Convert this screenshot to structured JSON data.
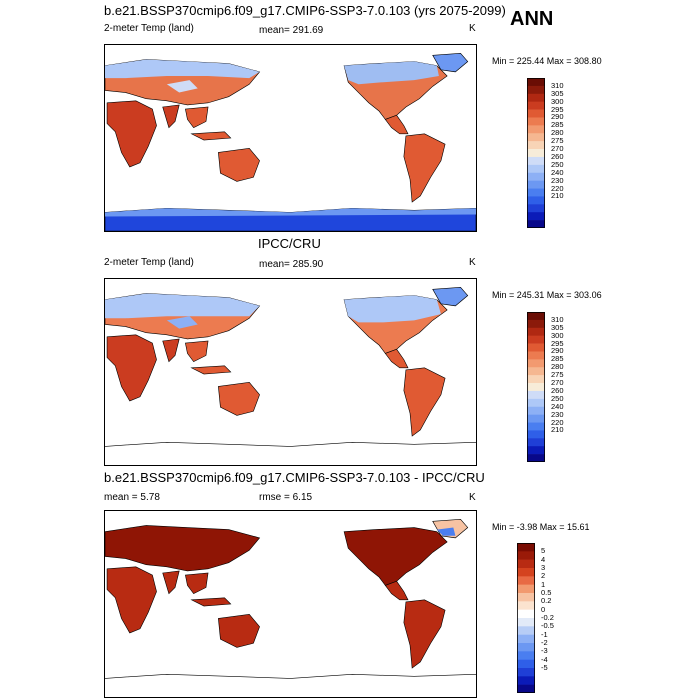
{
  "header": {
    "panel_label": "ANN"
  },
  "colors": {
    "abs_scale": [
      "#08088a",
      "#0b1bb8",
      "#1f3fd6",
      "#2f5fe8",
      "#4a7ef0",
      "#6c98f2",
      "#8db0f5",
      "#aec8f7",
      "#cfdcf7",
      "#f7ecd9",
      "#f8d4b6",
      "#f5b791",
      "#f29a70",
      "#ec7b50",
      "#e05a33",
      "#cb3c20",
      "#b02812",
      "#8b1a0a",
      "#6a0d04"
    ],
    "diff_scale": [
      "#08088a",
      "#0b1bb8",
      "#1f3fd6",
      "#2f5fe8",
      "#4a7ef0",
      "#6c98f2",
      "#8db0f5",
      "#b7cdf6",
      "#e2eaf8",
      "#ffffff",
      "#fbe3cf",
      "#f7c3a3",
      "#f29a70",
      "#e86a44",
      "#d4431f",
      "#b82b12",
      "#9a1a08",
      "#7a0c02"
    ],
    "land_top": "#e26a3e",
    "land_mid": "#e7744a",
    "land_diff": "#8f1505",
    "cold_top": "#9fbdf2",
    "antarctic": "#1f46dc"
  },
  "chart_data": [
    {
      "type": "map",
      "title": "b.e21.BSSP370cmip6.f09_g17.CMIP6-SSP3-7.0.103 (yrs 2075-2099)",
      "variable": "2-meter Temp (land)",
      "mean_text": "mean= 291.69",
      "units": "K",
      "minmax_text": "Min = 225.44 Max = 308.80",
      "levels": [
        "310",
        "305",
        "300",
        "295",
        "290",
        "285",
        "280",
        "275",
        "270",
        "260",
        "250",
        "240",
        "230",
        "220",
        "210"
      ]
    },
    {
      "type": "map",
      "title": "IPCC/CRU",
      "variable": "2-meter Temp (land)",
      "mean_text": "mean= 285.90",
      "units": "K",
      "minmax_text": "Min = 245.31 Max = 303.06",
      "levels": [
        "310",
        "305",
        "300",
        "295",
        "290",
        "285",
        "280",
        "275",
        "270",
        "260",
        "250",
        "240",
        "230",
        "220",
        "210"
      ]
    },
    {
      "type": "map",
      "title": "b.e21.BSSP370cmip6.f09_g17.CMIP6-SSP3-7.0.103 - IPCC/CRU",
      "variable": "mean =  5.78",
      "mean_text": "rmse =  6.15",
      "units": "K",
      "minmax_text": "Min =  -3.98 Max =  15.61",
      "levels": [
        "5",
        "4",
        "3",
        "2",
        "1",
        "0.5",
        "0.2",
        "0",
        "-0.2",
        "-0.5",
        "-1",
        "-2",
        "-3",
        "-4",
        "-5"
      ]
    }
  ]
}
